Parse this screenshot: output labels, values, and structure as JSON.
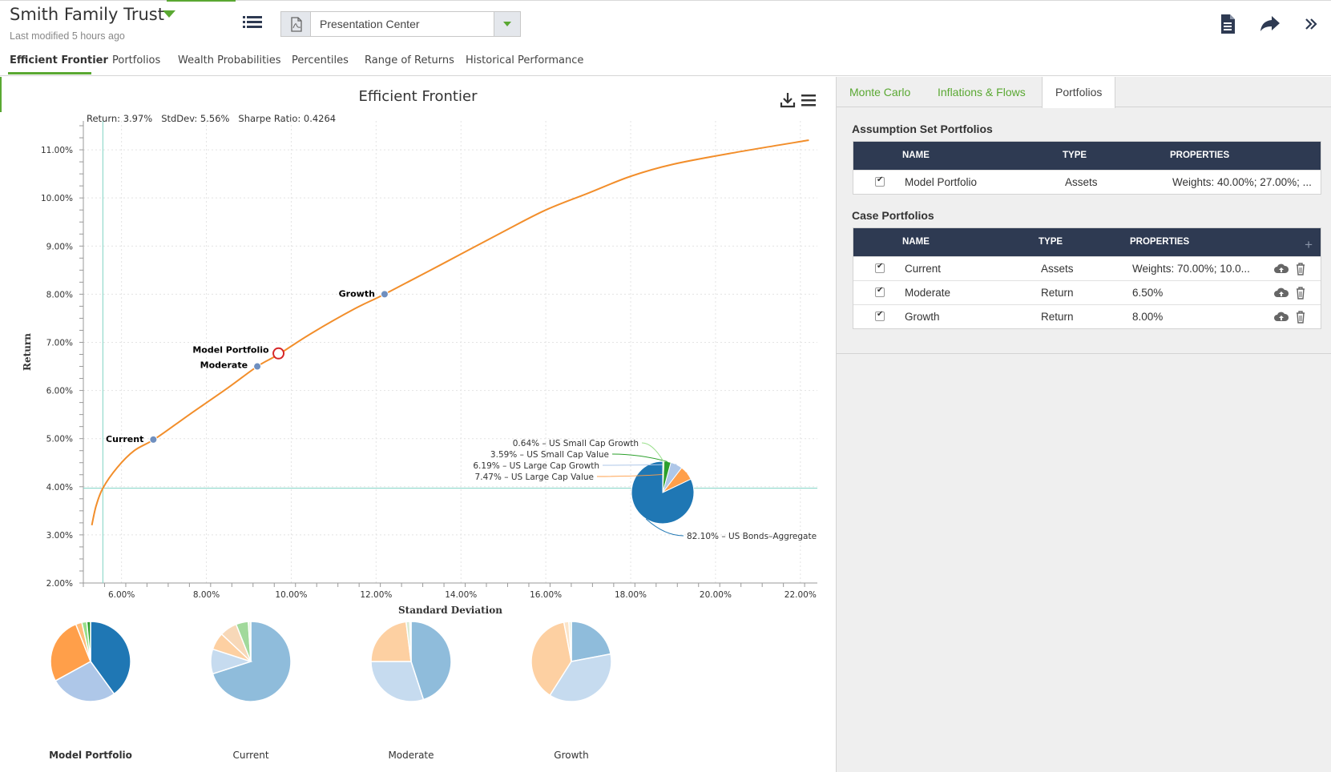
{
  "header": {
    "title": "Smith Family Trust",
    "subtitle": "Last modified 5 hours ago",
    "presentation_label": "Presentation Center"
  },
  "tabs": [
    "Efficient Frontier",
    "Portfolios",
    "Wealth Probabilities",
    "Percentiles",
    "Range of Returns",
    "Historical Performance"
  ],
  "icons": {
    "list": "list-icon",
    "pdf": "pdf-file-icon",
    "document": "document-icon",
    "share": "share-arrow-icon",
    "expand": "double-chevron-right-icon",
    "download": "download-icon",
    "menu": "hamburger-menu-icon"
  },
  "colors": {
    "accent": "#5aa832",
    "frontier": "#f28e2b",
    "point": "#6f8fbf",
    "highlight": "#d62728",
    "header_dark": "#2e3a52"
  },
  "chart_data": {
    "type": "scatter",
    "title": "Efficient Frontier",
    "subtitle": "Return: 3.97%   StdDev: 5.56%   Sharpe Ratio: 0.4264",
    "xlabel": "Standard Deviation",
    "ylabel": "Return",
    "xlim": [
      5.1,
      22.4
    ],
    "ylim": [
      2.0,
      11.6
    ],
    "xticks": [
      "6.00%",
      "8.00%",
      "10.00%",
      "12.00%",
      "14.00%",
      "16.00%",
      "18.00%",
      "20.00%",
      "22.00%"
    ],
    "yticks": [
      "2.00%",
      "3.00%",
      "4.00%",
      "5.00%",
      "6.00%",
      "7.00%",
      "8.00%",
      "9.00%",
      "10.00%",
      "11.00%"
    ],
    "frontier": {
      "x": [
        5.3,
        5.4,
        5.56,
        5.9,
        6.3,
        6.8,
        7.6,
        8.5,
        9.2,
        9.7,
        10.5,
        11.5,
        12.2,
        13.5,
        15.0,
        16.0,
        17.0,
        18.0,
        19.0,
        20.5,
        22.2
      ],
      "y": [
        3.2,
        3.6,
        3.97,
        4.4,
        4.75,
        5.0,
        5.5,
        6.05,
        6.5,
        6.75,
        7.2,
        7.7,
        8.0,
        8.6,
        9.3,
        9.75,
        10.1,
        10.45,
        10.7,
        10.95,
        11.2
      ]
    },
    "crosshair": {
      "x": 5.56,
      "y": 3.97
    },
    "points": [
      {
        "label": "Current",
        "x": 6.75,
        "y": 4.98,
        "highlight": false
      },
      {
        "label": "Moderate",
        "x": 9.2,
        "y": 6.5,
        "highlight": false
      },
      {
        "label": "Model Portfolio",
        "x": 9.7,
        "y": 6.77,
        "highlight": true
      },
      {
        "label": "Growth",
        "x": 12.2,
        "y": 8.0,
        "highlight": false
      }
    ],
    "tooltip_pie": {
      "slices": [
        {
          "label": "82.10% – US Bonds–Aggregate",
          "value": 82.1,
          "color": "#1f77b4"
        },
        {
          "label": "7.47% – US Large Cap Value",
          "value": 7.47,
          "color": "#ff9f4a"
        },
        {
          "label": "6.19% – US Large Cap Growth",
          "value": 6.19,
          "color": "#aec7e8"
        },
        {
          "label": "3.59% – US Small Cap Value",
          "value": 3.59,
          "color": "#2ca02c"
        },
        {
          "label": "0.64% – US Small Cap Growth",
          "value": 0.64,
          "color": "#98df8a"
        }
      ]
    },
    "small_pies": [
      {
        "label": "Model Portfolio",
        "bold": true,
        "values": [
          40,
          27,
          27,
          2.5,
          2,
          1.5
        ],
        "colors": [
          "#1f77b4",
          "#aec7e8",
          "#ff9f4a",
          "#ffbb78",
          "#98df8a",
          "#2ca02c"
        ]
      },
      {
        "label": "Current",
        "bold": false,
        "values": [
          70,
          10,
          7,
          7,
          5,
          1
        ],
        "colors": [
          "#8fbcdb",
          "#c6dbef",
          "#fdd0a2",
          "#f7d8b8",
          "#a1d99b",
          "#e6f5e1"
        ]
      },
      {
        "label": "Moderate",
        "bold": false,
        "values": [
          45,
          30,
          23,
          1.5,
          0.5
        ],
        "colors": [
          "#8fbcdb",
          "#c6dbef",
          "#fdd0a2",
          "#d9ead3",
          "#a1d99b"
        ]
      },
      {
        "label": "Growth",
        "bold": false,
        "values": [
          22,
          37,
          38,
          2,
          1
        ],
        "colors": [
          "#8fbcdb",
          "#c6dbef",
          "#fdd0a2",
          "#fbe4c9",
          "#e8f0e0"
        ]
      }
    ]
  },
  "right_panel": {
    "tabs": [
      "Monte Carlo",
      "Inflations & Flows",
      "Portfolios"
    ],
    "assumption_title": "Assumption Set Portfolios",
    "case_title": "Case Portfolios",
    "columns": [
      "NAME",
      "TYPE",
      "PROPERTIES"
    ],
    "add_label": "+",
    "assumption_rows": [
      {
        "name": "Model Portfolio",
        "type": "Assets",
        "properties": "Weights: 40.00%; 27.00%; ..."
      }
    ],
    "case_rows": [
      {
        "name": "Current",
        "type": "Assets",
        "properties": "Weights: 70.00%; 10.0..."
      },
      {
        "name": "Moderate",
        "type": "Return",
        "properties": "6.50%"
      },
      {
        "name": "Growth",
        "type": "Return",
        "properties": "8.00%"
      }
    ]
  }
}
